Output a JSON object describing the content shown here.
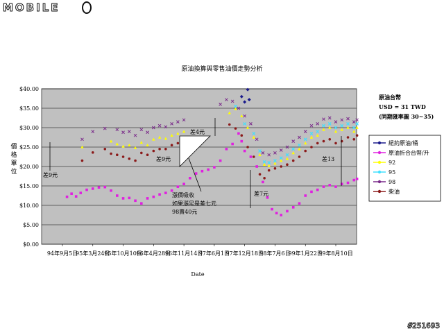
{
  "branding": {
    "logo_text": "MOBILE",
    "watermark": "#251693"
  },
  "chart_data": {
    "type": "line",
    "title": "原油換算與零售油價走勢分析",
    "xlabel": "Date",
    "ylabel": "價格單位",
    "ylim": [
      0,
      40
    ],
    "y_ticks": [
      "$0.00",
      "$5.00",
      "$10.00",
      "$15.00",
      "$20.00",
      "$25.00",
      "$30.00",
      "$35.00",
      "$40.00"
    ],
    "x_ticks": [
      "94年9月5日",
      "95年3月24日",
      "95年10月10日",
      "96年4月28日",
      "96年11月14日",
      "97年6月1日",
      "97年12月18日",
      "98年7月6日",
      "99年1月22日",
      "99年8月10日"
    ],
    "x_index_range": [
      0,
      9
    ],
    "exchange_note": {
      "title": "原油台幣",
      "line1": "USD = 31 TWD",
      "line2": "(同期匯率圖 30~35)"
    },
    "legend": {
      "placement": "right"
    },
    "grid": true,
    "colors": {
      "crude_usd": "#1a1a8c",
      "crude_twd": "#e020e0",
      "p92": "#ffff00",
      "p95": "#40e0ff",
      "p98": "#7a2a8a",
      "diesel": "#8b1a1a",
      "plot_bg": "#c0c0c0"
    },
    "series": [
      {
        "name": "紐約原油/桶",
        "points": [
          [
            5.9,
            38.0
          ],
          [
            6.0,
            36.6
          ],
          [
            6.1,
            39.8
          ],
          [
            6.15,
            37.2
          ]
        ]
      },
      {
        "name": "原油折合台幣/升",
        "points": [
          [
            0.15,
            12.2
          ],
          [
            0.3,
            13.0
          ],
          [
            0.45,
            12.3
          ],
          [
            0.6,
            13.2
          ],
          [
            0.8,
            14.0
          ],
          [
            1.0,
            14.3
          ],
          [
            1.2,
            14.6
          ],
          [
            1.4,
            14.7
          ],
          [
            1.6,
            13.8
          ],
          [
            1.8,
            12.5
          ],
          [
            2.0,
            11.8
          ],
          [
            2.2,
            11.9
          ],
          [
            2.4,
            11.2
          ],
          [
            2.6,
            10.5
          ],
          [
            2.8,
            11.8
          ],
          [
            3.0,
            12.2
          ],
          [
            3.2,
            12.8
          ],
          [
            3.4,
            13.2
          ],
          [
            3.6,
            13.8
          ],
          [
            3.8,
            14.8
          ],
          [
            4.0,
            15.5
          ],
          [
            4.2,
            17.0
          ],
          [
            4.4,
            18.2
          ],
          [
            4.6,
            18.8
          ],
          [
            4.8,
            19.2
          ],
          [
            5.0,
            19.8
          ],
          [
            5.2,
            21.5
          ],
          [
            5.4,
            24.5
          ],
          [
            5.6,
            25.8
          ],
          [
            5.8,
            28.5
          ],
          [
            5.9,
            26.5
          ],
          [
            6.0,
            24.0
          ],
          [
            6.2,
            22.5
          ],
          [
            6.4,
            20.0
          ],
          [
            6.6,
            16.0
          ],
          [
            6.75,
            12.0
          ],
          [
            6.9,
            9.0
          ],
          [
            7.05,
            8.0
          ],
          [
            7.2,
            7.5
          ],
          [
            7.4,
            8.5
          ],
          [
            7.6,
            9.5
          ],
          [
            7.8,
            10.5
          ],
          [
            8.0,
            12.5
          ],
          [
            8.2,
            13.5
          ],
          [
            8.4,
            14.0
          ],
          [
            8.6,
            14.8
          ],
          [
            8.8,
            15.2
          ],
          [
            9.0,
            14.8
          ],
          [
            9.2,
            15.5
          ],
          [
            9.4,
            15.8
          ],
          [
            9.6,
            16.5
          ],
          [
            9.7,
            16.8
          ]
        ]
      },
      {
        "name": "92",
        "points": [
          [
            0.65,
            25.0
          ],
          [
            1.6,
            26.5
          ],
          [
            1.8,
            25.8
          ],
          [
            2.0,
            25.2
          ],
          [
            2.2,
            25.5
          ],
          [
            2.4,
            24.8
          ],
          [
            2.6,
            26.2
          ],
          [
            2.8,
            25.5
          ],
          [
            3.0,
            27.0
          ],
          [
            3.2,
            27.5
          ],
          [
            3.4,
            27.2
          ],
          [
            3.6,
            28.0
          ],
          [
            3.8,
            28.5
          ],
          [
            4.0,
            29.0
          ],
          [
            5.5,
            33.8
          ],
          [
            5.7,
            34.8
          ],
          [
            5.9,
            33.0
          ],
          [
            6.1,
            30.0
          ],
          [
            6.3,
            27.5
          ],
          [
            6.5,
            23.0
          ],
          [
            6.65,
            20.5
          ],
          [
            6.8,
            20.2
          ],
          [
            7.0,
            20.8
          ],
          [
            7.2,
            21.5
          ],
          [
            7.4,
            22.0
          ],
          [
            7.6,
            23.5
          ],
          [
            7.8,
            24.5
          ],
          [
            8.0,
            26.0
          ],
          [
            8.2,
            27.5
          ],
          [
            8.4,
            28.0
          ],
          [
            8.6,
            29.5
          ],
          [
            8.8,
            30.0
          ],
          [
            9.0,
            29.0
          ],
          [
            9.2,
            29.5
          ],
          [
            9.4,
            30.0
          ],
          [
            9.6,
            29.0
          ],
          [
            9.7,
            30.0
          ]
        ]
      },
      {
        "name": "95",
        "points": [
          [
            5.7,
            35.5
          ],
          [
            6.0,
            31.0
          ],
          [
            6.3,
            28.5
          ],
          [
            6.5,
            24.0
          ],
          [
            6.65,
            21.2
          ],
          [
            6.8,
            21.0
          ],
          [
            7.0,
            21.5
          ],
          [
            7.2,
            22.2
          ],
          [
            7.4,
            23.0
          ],
          [
            7.6,
            24.5
          ],
          [
            7.8,
            25.5
          ],
          [
            8.0,
            27.0
          ],
          [
            8.2,
            28.5
          ],
          [
            8.4,
            29.0
          ],
          [
            8.6,
            30.5
          ],
          [
            8.8,
            31.0
          ],
          [
            9.0,
            30.0
          ],
          [
            9.2,
            30.5
          ],
          [
            9.4,
            31.0
          ],
          [
            9.6,
            30.0
          ],
          [
            9.7,
            31.0
          ]
        ]
      },
      {
        "name": "98",
        "points": [
          [
            0.65,
            27.0
          ],
          [
            1.0,
            29.0
          ],
          [
            1.4,
            29.8
          ],
          [
            1.8,
            29.5
          ],
          [
            2.0,
            28.8
          ],
          [
            2.2,
            29.0
          ],
          [
            2.4,
            28.0
          ],
          [
            2.6,
            29.5
          ],
          [
            2.8,
            28.8
          ],
          [
            3.0,
            30.0
          ],
          [
            3.2,
            30.5
          ],
          [
            3.4,
            30.2
          ],
          [
            3.6,
            31.0
          ],
          [
            3.8,
            31.5
          ],
          [
            4.0,
            32.0
          ],
          [
            5.2,
            36.0
          ],
          [
            5.4,
            37.2
          ],
          [
            5.6,
            36.8
          ],
          [
            5.8,
            35.0
          ],
          [
            6.0,
            33.0
          ],
          [
            6.2,
            31.0
          ],
          [
            6.4,
            27.0
          ],
          [
            6.6,
            23.5
          ],
          [
            6.8,
            23.0
          ],
          [
            7.0,
            23.5
          ],
          [
            7.2,
            24.2
          ],
          [
            7.4,
            25.0
          ],
          [
            7.6,
            26.5
          ],
          [
            7.8,
            27.5
          ],
          [
            8.0,
            29.0
          ],
          [
            8.2,
            30.5
          ],
          [
            8.4,
            31.0
          ],
          [
            8.6,
            32.2
          ],
          [
            8.8,
            32.5
          ],
          [
            9.0,
            31.5
          ],
          [
            9.2,
            32.0
          ],
          [
            9.4,
            32.3
          ],
          [
            9.6,
            31.5
          ],
          [
            9.7,
            32.0
          ]
        ]
      },
      {
        "name": "柴油",
        "points": [
          [
            0.65,
            21.5
          ],
          [
            1.0,
            23.6
          ],
          [
            1.4,
            24.5
          ],
          [
            1.6,
            23.3
          ],
          [
            1.8,
            23.0
          ],
          [
            2.0,
            22.5
          ],
          [
            2.2,
            22.0
          ],
          [
            2.4,
            21.5
          ],
          [
            2.6,
            23.5
          ],
          [
            2.8,
            23.0
          ],
          [
            3.0,
            24.0
          ],
          [
            3.2,
            24.5
          ],
          [
            3.4,
            24.5
          ],
          [
            3.6,
            25.5
          ],
          [
            3.8,
            26.0
          ],
          [
            4.0,
            26.5
          ],
          [
            5.5,
            30.8
          ],
          [
            5.7,
            29.8
          ],
          [
            5.9,
            28.0
          ],
          [
            6.1,
            25.0
          ],
          [
            6.3,
            22.5
          ],
          [
            6.5,
            18.0
          ],
          [
            6.65,
            17.0
          ],
          [
            6.8,
            19.0
          ],
          [
            7.0,
            19.5
          ],
          [
            7.2,
            20.0
          ],
          [
            7.4,
            20.5
          ],
          [
            7.6,
            21.5
          ],
          [
            7.8,
            22.5
          ],
          [
            8.0,
            24.0
          ],
          [
            8.2,
            25.0
          ],
          [
            8.4,
            26.0
          ],
          [
            8.6,
            26.5
          ],
          [
            8.8,
            27.0
          ],
          [
            9.0,
            26.0
          ],
          [
            9.2,
            26.5
          ],
          [
            9.4,
            27.5
          ],
          [
            9.6,
            27.0
          ],
          [
            9.7,
            28.0
          ]
        ]
      }
    ],
    "annotations": [
      "差9元",
      "差4元",
      "差9元",
      "差7元",
      "差13",
      "漲價吸收",
      "如果漲足是差七元",
      "98賣40元"
    ]
  }
}
